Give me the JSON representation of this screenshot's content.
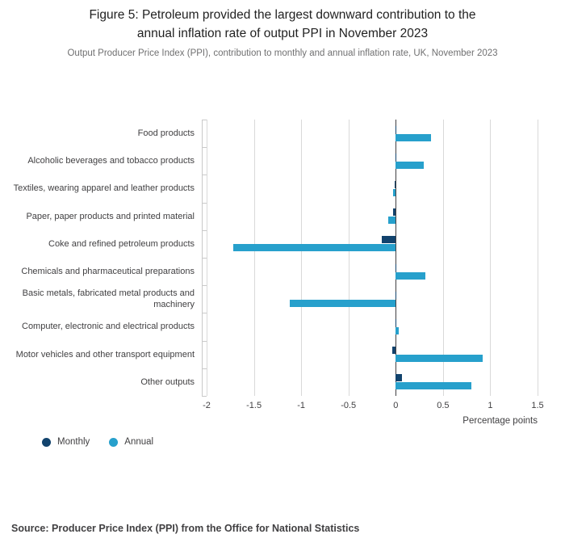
{
  "header": {
    "title_line1": "Figure 5: Petroleum provided the largest downward contribution to the",
    "title_line2": "annual inflation rate of output PPI in November 2023",
    "subtitle": "Output Producer Price Index (PPI), contribution to monthly and annual inflation rate, UK, November 2023"
  },
  "chart_data": {
    "type": "bar",
    "orientation": "horizontal",
    "title": "Figure 5: Petroleum provided the largest downward contribution to the annual inflation rate of output PPI in November 2023",
    "subtitle": "Output Producer Price Index (PPI), contribution to monthly and annual inflation rate, UK, November 2023",
    "categories": [
      "Food products",
      "Alcoholic beverages and tobacco products",
      "Textiles, wearing apparel and leather products",
      "Paper, paper products and printed material",
      "Coke and refined petroleum products",
      "Chemicals and pharmaceutical preparations",
      "Basic metals, fabricated metal products and machinery",
      "Computer, electronic and electrical products",
      "Motor vehicles and other transport equipment",
      "Other outputs"
    ],
    "series": [
      {
        "name": "Monthly",
        "color": "#12436D",
        "values": [
          0.01,
          0.01,
          -0.01,
          -0.03,
          -0.15,
          0.01,
          0.01,
          0.01,
          -0.04,
          0.07
        ]
      },
      {
        "name": "Annual",
        "color": "#27A0CC",
        "values": [
          0.37,
          0.3,
          -0.03,
          -0.08,
          -1.72,
          0.31,
          -1.12,
          0.03,
          0.92,
          0.8
        ]
      }
    ],
    "xlabel": "Percentage points",
    "xlim": [
      -2,
      1.5
    ],
    "xticks": [
      -2,
      -1.5,
      -1,
      -0.5,
      0,
      0.5,
      1,
      1.5
    ],
    "xtick_labels": [
      "-2",
      "-1.5",
      "-1",
      "-0.5",
      "0",
      "0.5",
      "1",
      "1.5"
    ],
    "grid": true,
    "legend_position": "bottom-left"
  },
  "footer": {
    "source": "Source: Producer Price Index (PPI) from the Office for National Statistics"
  }
}
